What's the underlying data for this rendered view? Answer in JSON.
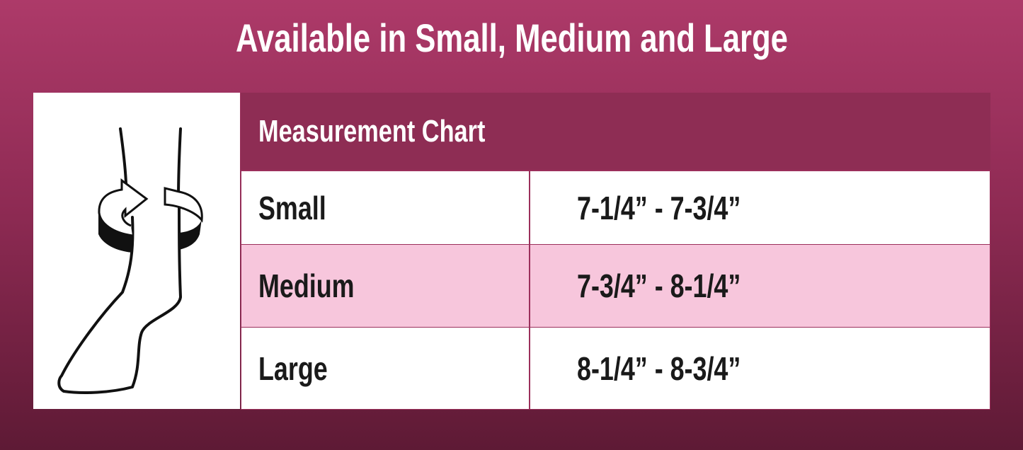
{
  "title": "Available in Small, Medium and Large",
  "illustration": {
    "icon": "foot-circumference-measure-icon"
  },
  "chart": {
    "header": "Measurement Chart",
    "rows": [
      {
        "size": "Small",
        "range": "7-1/4” - 7-3/4”"
      },
      {
        "size": "Medium",
        "range": "7-3/4” - 8-1/4”"
      },
      {
        "size": "Large",
        "range": "8-1/4” - 8-3/4”"
      }
    ]
  },
  "colors": {
    "brand": "#8e2d54",
    "highlight_row": "#f7c6dc"
  }
}
